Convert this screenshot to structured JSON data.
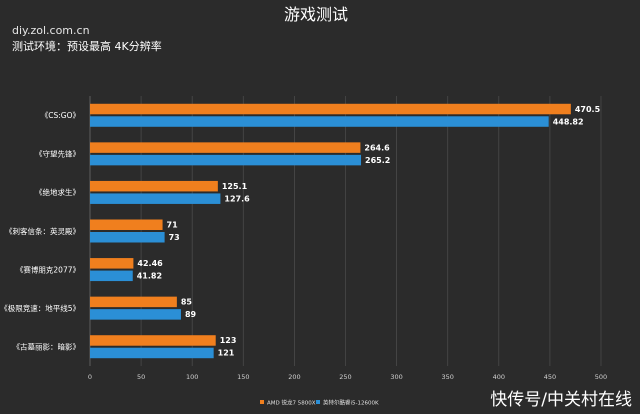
{
  "header": {
    "watermark": "diy.zol.com.cn",
    "subtitle": "测试环境：预设最高 4K分辨率",
    "brand": "快传号/中关村在线"
  },
  "colors": {
    "background": "#2b2b2b",
    "amd": "#f07f1e",
    "intel": "#2b8fd6",
    "grid": "#4a4a4a"
  },
  "chart_data": {
    "type": "bar",
    "orientation": "horizontal",
    "title": "游戏测试",
    "categories": [
      "《CS:GO》",
      "《守望先锋》",
      "《绝地求生》",
      "《刺客信条：英灵殿》",
      "《赛博朋克2077》",
      "《极限竞速：地平线5》",
      "《古墓丽影：暗影》"
    ],
    "series": [
      {
        "name": "AMD 锐龙7 5800X",
        "color": "#f07f1e",
        "values": [
          470.5,
          264.6,
          125.1,
          71,
          42.46,
          85,
          123
        ]
      },
      {
        "name": "英特尔酷睿i5-12600K",
        "color": "#2b8fd6",
        "values": [
          448.82,
          265.2,
          127.6,
          73,
          41.82,
          89,
          121
        ]
      }
    ],
    "value_labels": [
      [
        "470.5",
        "264.6",
        "125.1",
        "71",
        "42.46",
        "85",
        "123"
      ],
      [
        "448.82",
        "265.2",
        "127.6",
        "73",
        "41.82",
        "89",
        "121"
      ]
    ],
    "xlim": [
      0,
      500
    ],
    "xticks": [
      "0",
      "50",
      "100",
      "150",
      "200",
      "250",
      "300",
      "350",
      "400",
      "450",
      "500"
    ],
    "grid": true,
    "legend_position": "bottom-center"
  }
}
